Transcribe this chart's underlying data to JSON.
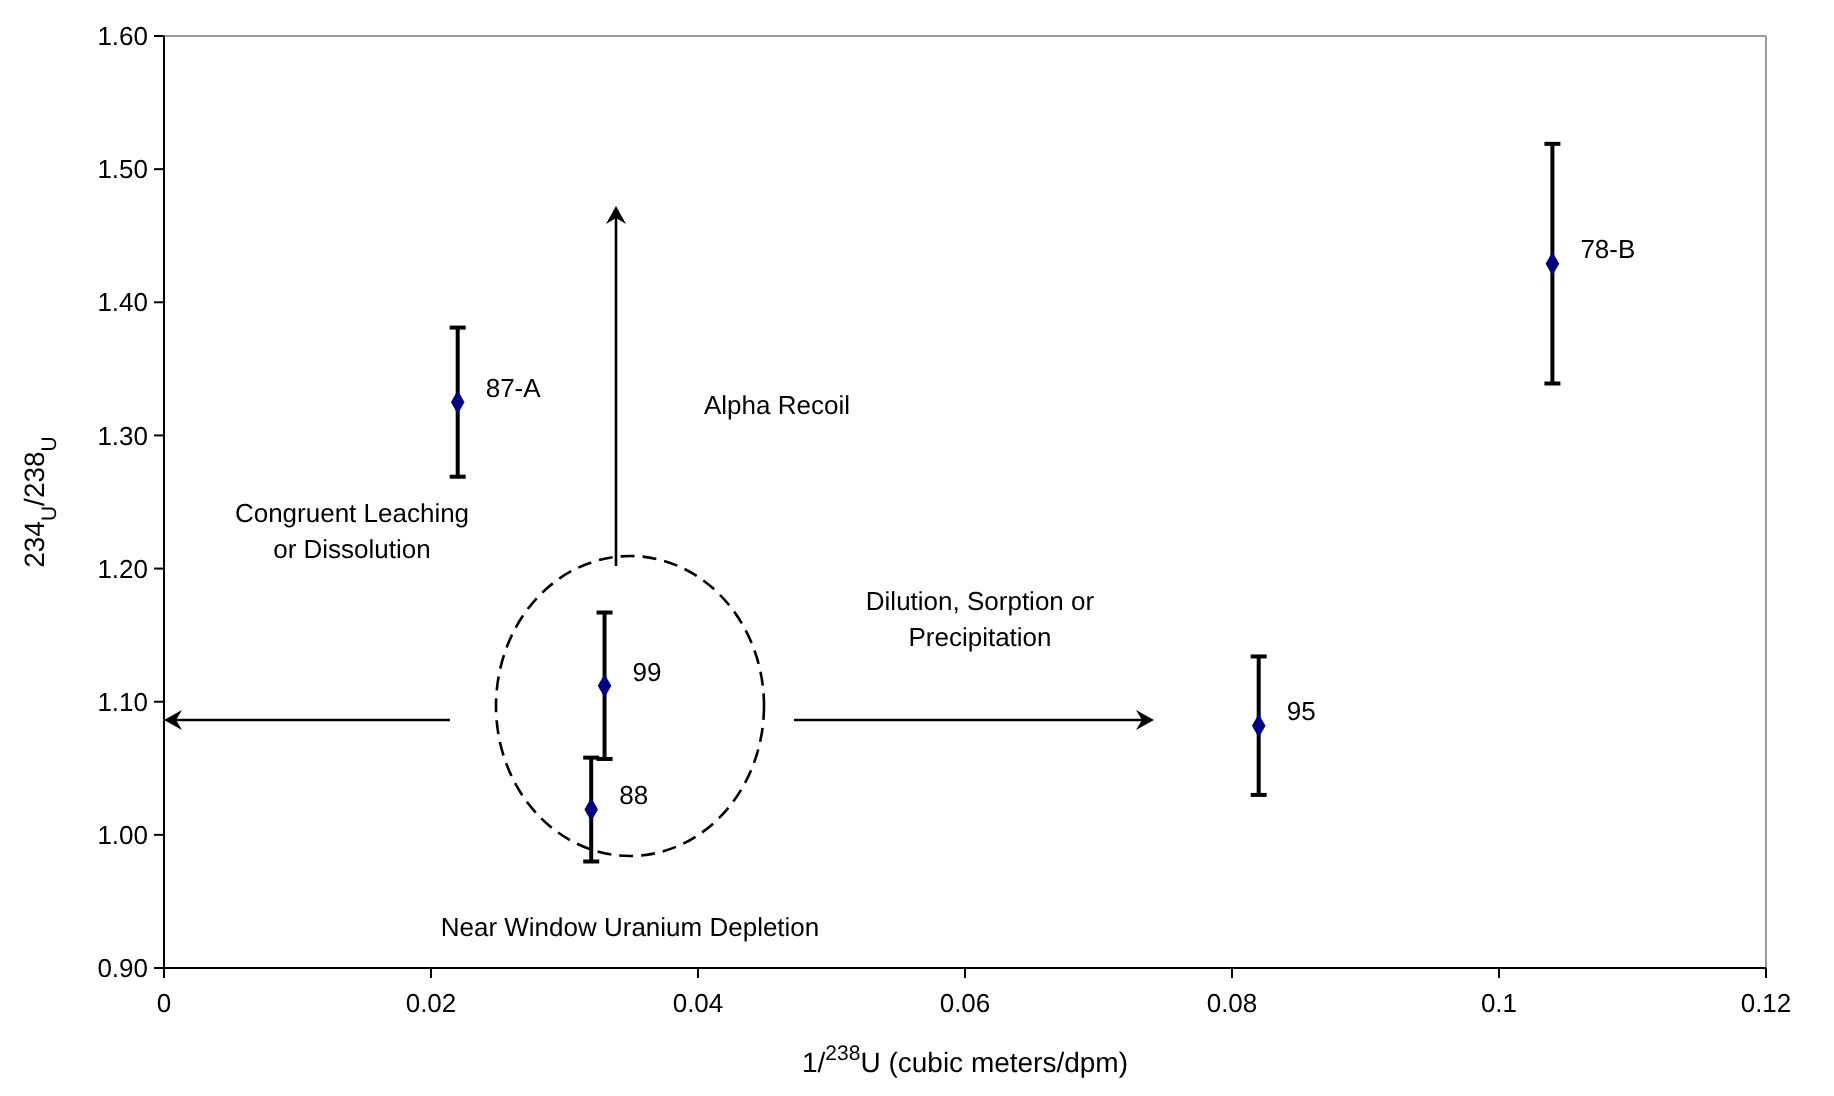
{
  "chart_data": {
    "type": "scatter",
    "xlabel": "1/$^{238}$U (cubic meters/dpm)",
    "ylabel": "234$_{U}$/238$_{U}$",
    "x": [
      0.022,
      0.104,
      0.082,
      0.033,
      0.032
    ],
    "values": [
      1.325,
      1.429,
      1.082,
      1.112,
      1.019
    ],
    "errors": [
      0.056,
      0.09,
      0.052,
      0.055,
      0.039
    ],
    "color": "#000080",
    "marker": "diamond",
    "grid": false,
    "xlim": [
      0,
      0.12
    ],
    "xticks": [
      0,
      0.02,
      0.04,
      0.06,
      0.08,
      0.1,
      0.12
    ],
    "ylim": [
      0.9,
      1.6
    ],
    "yticks": [
      {
        "value": 0.9,
        "label": "0.90"
      },
      {
        "value": 1.0,
        "label": "1.00"
      },
      {
        "value": 1.1,
        "label": "1.10"
      },
      {
        "value": 1.2,
        "label": "1.20"
      },
      {
        "value": 1.3,
        "label": "1.30"
      },
      {
        "value": 1.4,
        "label": "1.40"
      },
      {
        "value": 1.5,
        "label": "1.50"
      },
      {
        "value": 1.6,
        "label": "1.60"
      }
    ],
    "annotations": [
      {
        "text": "87-A",
        "x": 0.022,
        "y": 1.325
      },
      {
        "text": "78-B",
        "x": 0.104,
        "y": 1.429
      },
      {
        "text": "95",
        "x": 0.082,
        "y": 1.082
      },
      {
        "text": "99",
        "x": 0.033,
        "y": 1.112
      },
      {
        "text": "88",
        "x": 0.032,
        "y": 1.019
      },
      "Alpha Recoil",
      "Congruent Leaching\nor Dissolution",
      "Dilution, Sorption or\nPrecipitation",
      "Near Window Uranium Depletion"
    ]
  }
}
